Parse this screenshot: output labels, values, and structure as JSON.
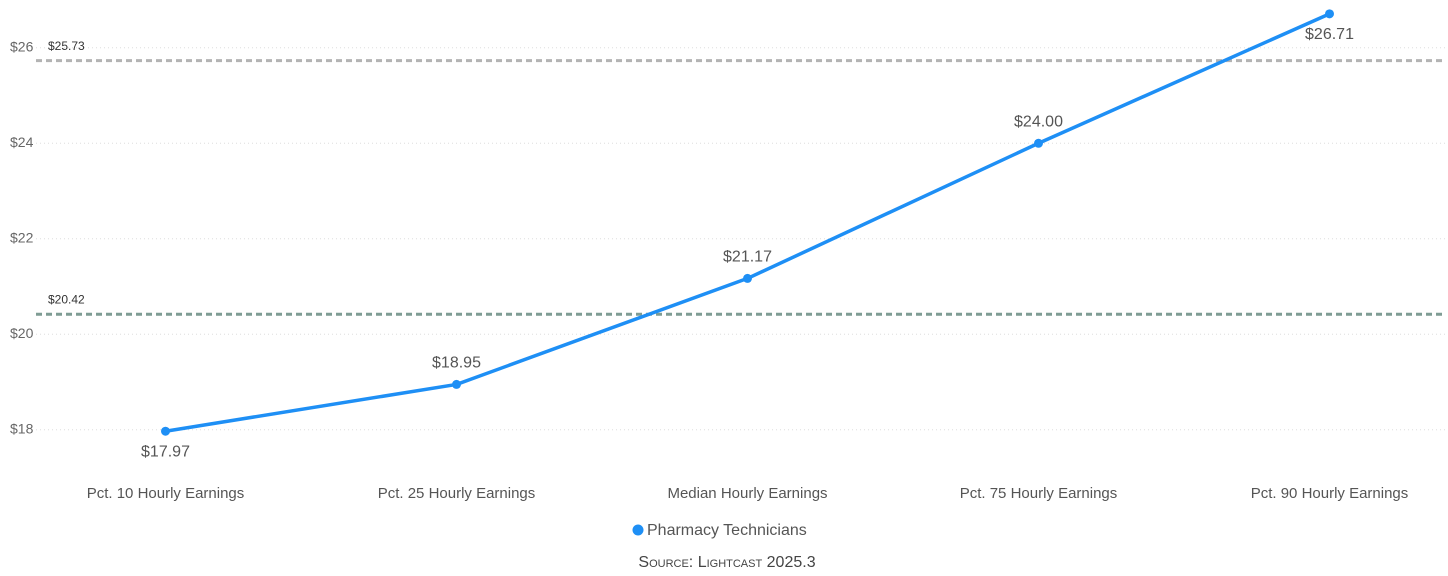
{
  "chart_data": {
    "type": "line",
    "categories": [
      "Pct. 10 Hourly Earnings",
      "Pct. 25 Hourly Earnings",
      "Median Hourly Earnings",
      "Pct. 75 Hourly Earnings",
      "Pct. 90 Hourly Earnings"
    ],
    "series": [
      {
        "name": "Pharmacy Technicians",
        "color": "#1e8ff5",
        "values": [
          17.97,
          18.95,
          21.17,
          24.0,
          26.71
        ],
        "value_labels": [
          "$17.97",
          "$18.95",
          "$21.17",
          "$24.00",
          "$26.71"
        ]
      }
    ],
    "ylim": [
      17.2,
      27
    ],
    "yticks": [
      {
        "value": 18,
        "label": "$18"
      },
      {
        "value": 20,
        "label": "$20"
      },
      {
        "value": 22,
        "label": "$22"
      },
      {
        "value": 24,
        "label": "$24"
      },
      {
        "value": 26,
        "label": "$26"
      }
    ],
    "grid": true,
    "reference_lines": [
      {
        "value": 25.73,
        "label": "$25.73",
        "color": "#b3b3b3"
      },
      {
        "value": 20.42,
        "label": "$20.42",
        "color": "#7f9c94"
      }
    ],
    "legend": "bottom",
    "source": "Source: Lightcast 2025.3"
  }
}
